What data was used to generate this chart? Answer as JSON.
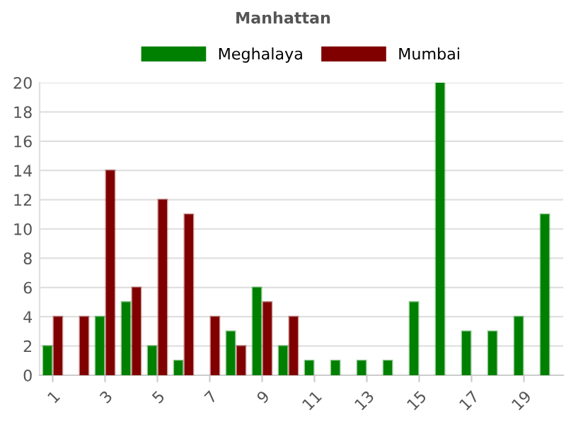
{
  "chart_data": {
    "type": "bar",
    "title": "Manhattan",
    "categories": [
      "1",
      null,
      "3",
      null,
      "5",
      null,
      "7",
      null,
      "9",
      null,
      "11",
      null,
      "13",
      null,
      "15",
      null,
      "17",
      null,
      "19",
      null
    ],
    "series": [
      {
        "name": "Meghalaya",
        "color": "#008000",
        "values": [
          2,
          0,
          4,
          5,
          2,
          1,
          0,
          3,
          6,
          2,
          1,
          1,
          1,
          1,
          5,
          20,
          3,
          3,
          4,
          11
        ]
      },
      {
        "name": "Mumbai",
        "color": "#800000",
        "values": [
          4,
          4,
          14,
          6,
          12,
          11,
          4,
          2,
          5,
          4,
          0,
          0,
          0,
          0,
          0,
          0,
          0,
          0,
          0,
          0
        ]
      }
    ],
    "ylim": [
      0,
      20
    ],
    "yticks": [
      0,
      2,
      4,
      6,
      8,
      10,
      12,
      14,
      16,
      18,
      20
    ],
    "grid": "y",
    "legend": "top"
  }
}
